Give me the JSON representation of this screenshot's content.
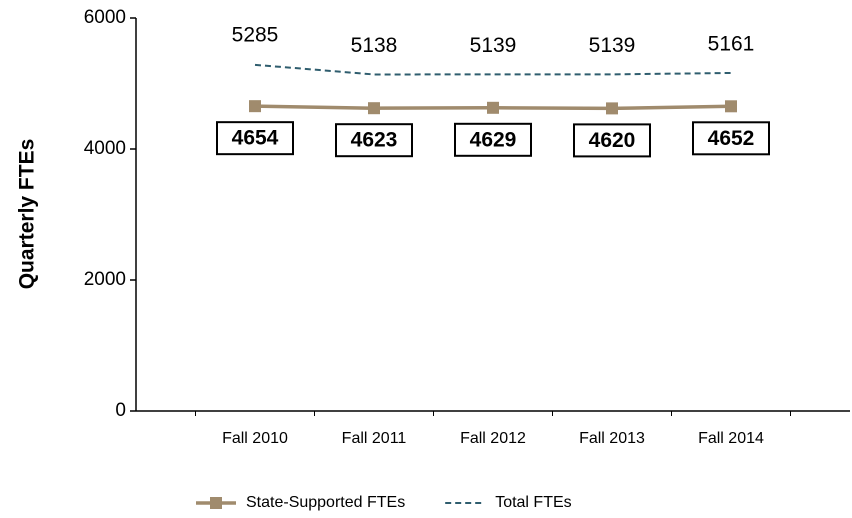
{
  "chart_data": {
    "type": "line",
    "y_label": "Quarterly FTEs",
    "categories": [
      "Fall 2010",
      "Fall 2011",
      "Fall 2012",
      "Fall 2013",
      "Fall 2014"
    ],
    "series": [
      {
        "name": "State-Supported FTEs",
        "color": "#a08b6d",
        "values": [
          4654,
          4623,
          4629,
          4620,
          4652
        ]
      },
      {
        "name": "Total FTEs",
        "color": "#2f5d6e",
        "dashed": true,
        "values": [
          5285,
          5138,
          5139,
          5139,
          5161
        ]
      }
    ],
    "ylim": [
      0,
      6000
    ],
    "yticks": [
      0,
      2000,
      4000,
      6000
    ],
    "grid": false
  }
}
